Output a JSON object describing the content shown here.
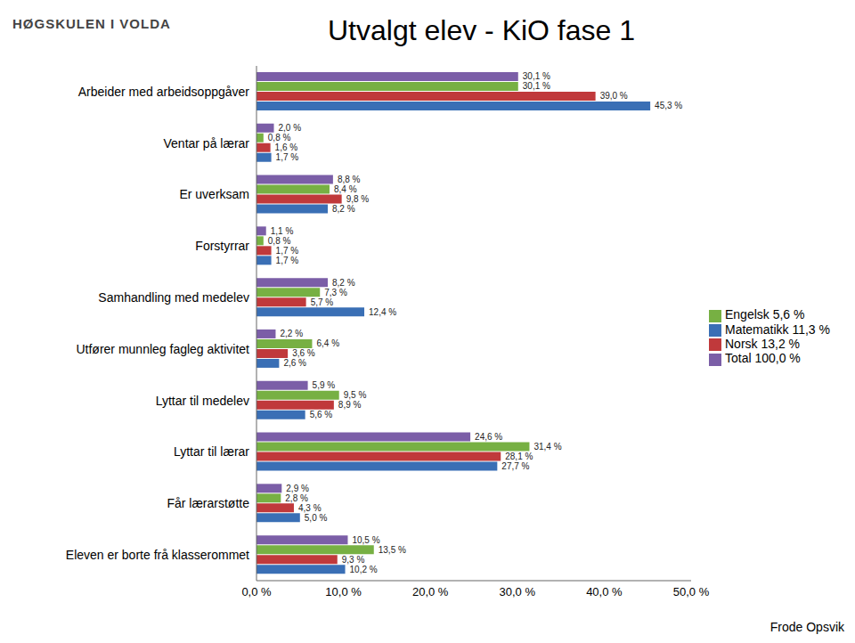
{
  "chart_data": {
    "type": "bar",
    "orientation": "horizontal",
    "title": "Utvalgt elev - KiO fase 1",
    "annotations": [
      "HØGSKULEN I VOLDA",
      "Frode Opsvik"
    ],
    "categories": [
      "Arbeider med arbeidsoppgåver",
      "Ventar på lærar",
      "Er uverksam",
      "Forstyrrar",
      "Samhandling med medelev",
      "Utfører munnleg fagleg aktivitet",
      "Lyttar til medelev",
      "Lyttar til lærar",
      "Får lærarstøtte",
      "Eleven er borte frå klasserommet"
    ],
    "series": [
      {
        "name": "Total 100,0 %",
        "color": "#7b5ea7",
        "values": [
          30.1,
          2.0,
          8.8,
          1.1,
          8.2,
          2.2,
          5.9,
          24.6,
          2.9,
          10.5
        ],
        "value_labels": [
          "30,1 %",
          "2,0 %",
          "8,8 %",
          "1,1 %",
          "8,2 %",
          "2,2 %",
          "5,9 %",
          "24,6 %",
          "2,9 %",
          "10,5 %"
        ]
      },
      {
        "name": "Engelsk 5,6 %",
        "color": "#77b043",
        "values": [
          30.1,
          0.8,
          8.4,
          0.8,
          7.3,
          6.4,
          9.5,
          31.4,
          2.8,
          13.5
        ],
        "value_labels": [
          "30,1 %",
          "0,8 %",
          "8,4 %",
          "0,8 %",
          "7,3 %",
          "6,4 %",
          "9,5 %",
          "31,4 %",
          "2,8 %",
          "13,5 %"
        ]
      },
      {
        "name": "Norsk 13,2 %",
        "color": "#c0393b",
        "values": [
          39.0,
          1.6,
          9.8,
          1.7,
          5.7,
          3.6,
          8.9,
          28.1,
          4.3,
          9.3
        ],
        "value_labels": [
          "39,0 %",
          "1,6 %",
          "9,8 %",
          "1,7 %",
          "5,7 %",
          "3,6 %",
          "8,9 %",
          "28,1 %",
          "4,3 %",
          "9,3 %"
        ]
      },
      {
        "name": "Matematikk 11,3 %",
        "color": "#3a6fb5",
        "values": [
          45.3,
          1.7,
          8.2,
          1.7,
          12.4,
          2.6,
          5.6,
          27.7,
          5.0,
          10.2
        ],
        "value_labels": [
          "45,3 %",
          "1,7 %",
          "8,2 %",
          "1,7 %",
          "12,4 %",
          "2,6 %",
          "5,6 %",
          "27,7 %",
          "5,0 %",
          "10,2 %"
        ]
      }
    ],
    "xlim": [
      0,
      50
    ],
    "xticks": [
      {
        "value": 0,
        "label": "0,0 %"
      },
      {
        "value": 10,
        "label": "10,0 %"
      },
      {
        "value": 20,
        "label": "20,0 %"
      },
      {
        "value": 30,
        "label": "30,0 %"
      },
      {
        "value": 40,
        "label": "40,0 %"
      },
      {
        "value": 50,
        "label": "50,0 %"
      }
    ],
    "grid": false,
    "legend": "right",
    "data_labels": true
  }
}
